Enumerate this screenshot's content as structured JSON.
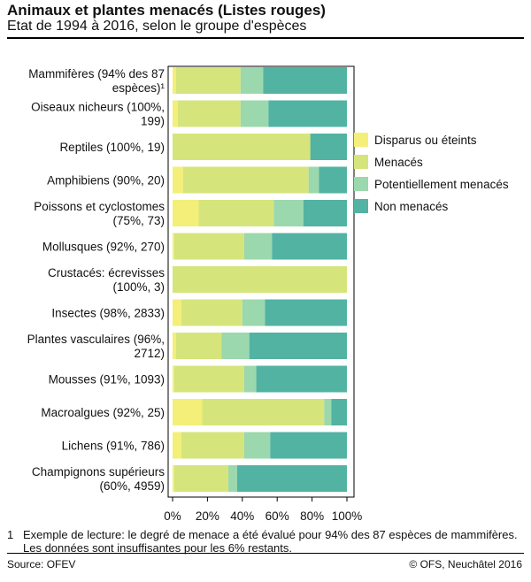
{
  "header": {
    "title": "Animaux et plantes menacés (Listes rouges)",
    "subtitle": "Etat de 1994 à 2016, selon le groupe d'espèces"
  },
  "colors": {
    "Disparus ou éteints": "#f3ef78",
    "Menacés": "#d5e57c",
    "Potentiellement menacés": "#9bd8ad",
    "Non menacés": "#52b3a3"
  },
  "chart_data": {
    "type": "bar",
    "orientation": "horizontal",
    "stacked": true,
    "percent_scale": true,
    "categories": [
      [
        "Mammifères (94% des  87",
        "espèces)¹"
      ],
      [
        "Oiseaux nicheurs (100%,",
        "199)"
      ],
      [
        "Reptiles (100%, 19)"
      ],
      [
        "Amphibiens (90%, 20)"
      ],
      [
        "Poissons et cyclostomes",
        "(75%, 73)"
      ],
      [
        "Mollusques (92%, 270)"
      ],
      [
        "Crustacés: écrevisses",
        "(100%, 3)"
      ],
      [
        "Insectes (98%, 2833)"
      ],
      [
        "Plantes vasculaires (96%,",
        "2712)"
      ],
      [
        "Mousses (91%, 1093)"
      ],
      [
        "Macroalgues (92%, 25)"
      ],
      [
        "Lichens (91%, 786)"
      ],
      [
        "Champignons supérieurs",
        "(60%, 4959)"
      ]
    ],
    "series": [
      {
        "name": "Disparus ou éteints",
        "values": [
          2,
          3,
          0,
          6,
          15,
          1,
          0,
          5,
          2,
          1,
          17,
          5,
          1
        ]
      },
      {
        "name": "Menacés",
        "values": [
          37,
          36,
          79,
          72,
          43,
          40,
          100,
          35,
          26,
          40,
          70,
          36,
          31
        ]
      },
      {
        "name": "Potentiellement menacés",
        "values": [
          13,
          16,
          0,
          6,
          17,
          16,
          0,
          13,
          16,
          7,
          4,
          15,
          5
        ]
      },
      {
        "name": "Non menacés",
        "values": [
          48,
          45,
          21,
          16,
          25,
          43,
          0,
          47,
          56,
          52,
          9,
          44,
          63
        ]
      }
    ],
    "x_ticks": [
      "0%",
      "20%",
      "40%",
      "60%",
      "80%",
      "100%"
    ],
    "xlim": [
      0,
      100
    ],
    "grid": false,
    "legend_position": "right"
  },
  "footnote": {
    "number": "1",
    "line1": "Exemple de lecture: le degré de menace a été évalué pour 94% des 87 espèces de mammifères.",
    "line2": "Les données sont insuffisantes pour les 6% restants."
  },
  "footer": {
    "source": "Source: OFEV",
    "copyright": "© OFS, Neuchâtel 2016"
  }
}
